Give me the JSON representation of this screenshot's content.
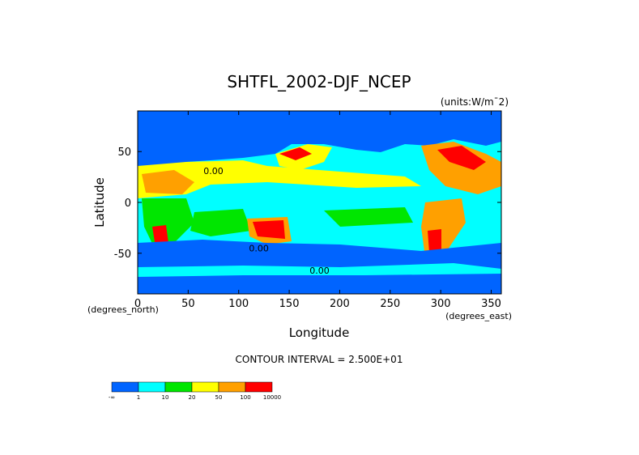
{
  "chart_data": {
    "type": "contour_map",
    "title": "SHTFL_2002-DJF_NCEP",
    "subtitle": "(units:W/m¯2)",
    "x_label": "Longitude",
    "y_label": "Latitude",
    "x_unit": "(degrees_east)",
    "y_unit": "(degrees_north)",
    "annotation": "CONTOUR INTERVAL = 2.500E+01",
    "xlim": [
      0,
      360
    ],
    "xticks": [
      0,
      50,
      100,
      150,
      200,
      250,
      300,
      350
    ],
    "ylim": [
      -90,
      90
    ],
    "yticks": [
      -50,
      0,
      50
    ],
    "contour_labels": [
      {
        "text": "0.00",
        "x": 120,
        "y": -48
      },
      {
        "text": "0.00",
        "x": 180,
        "y": -70
      },
      {
        "text": "0.00",
        "x": 75,
        "y": 28
      }
    ],
    "colorbar": {
      "labels": [
        "-∞",
        "1",
        "10",
        "20",
        "50",
        "100",
        "10000"
      ],
      "colors": [
        "#0064ff",
        "#00ffff",
        "#00e600",
        "#ffff00",
        "#ffa000",
        "#ff0000"
      ]
    }
  }
}
